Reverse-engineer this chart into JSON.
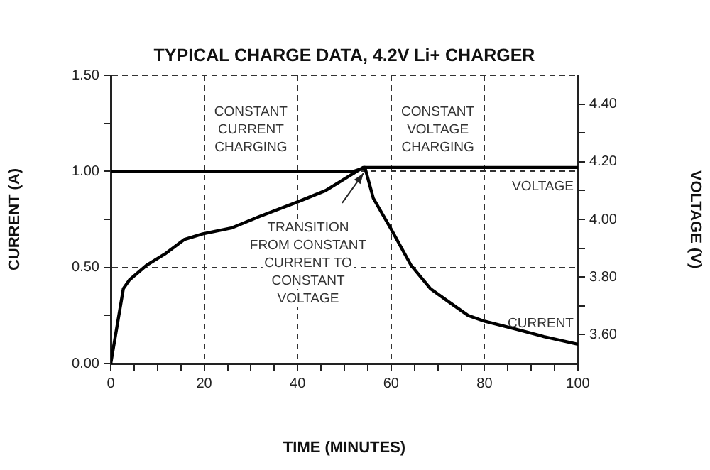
{
  "chart_data": {
    "type": "line",
    "title": "TYPICAL CHARGE DATA, 4.2V Li+ CHARGER",
    "xlabel": "TIME (MINUTES)",
    "ylabel": "CURRENT (A)",
    "y2label": "VOLTAGE (V)",
    "xlim": [
      0,
      100
    ],
    "xticks": [
      0,
      {
        "value": 5,
        "label": null
      },
      {
        "value": 10,
        "label": null
      },
      {
        "value": 15,
        "label": null
      },
      20,
      {
        "value": 25,
        "label": null
      },
      {
        "value": 30,
        "label": null
      },
      {
        "value": 35,
        "label": null
      },
      40,
      {
        "value": 45,
        "label": null
      },
      {
        "value": 50,
        "label": null
      },
      {
        "value": 55,
        "label": null
      },
      60,
      {
        "value": 65,
        "label": null
      },
      {
        "value": 70,
        "label": null
      },
      {
        "value": 75,
        "label": null
      },
      80,
      {
        "value": 85,
        "label": null
      },
      {
        "value": 90,
        "label": null
      },
      {
        "value": 95,
        "label": null
      },
      100
    ],
    "ylim": [
      0,
      1.5
    ],
    "yticks": [
      {
        "value": 0,
        "label": "0.00"
      },
      {
        "value": 0.25,
        "label": null
      },
      {
        "value": 0.5,
        "label": "0.50"
      },
      {
        "value": 0.75,
        "label": null
      },
      {
        "value": 1,
        "label": "1.00"
      },
      {
        "value": 1.25,
        "label": null
      },
      {
        "value": 1.5,
        "label": "1.50"
      }
    ],
    "y2lim": [
      3.5,
      4.5
    ],
    "y2ticks": [
      {
        "value": 3.6,
        "label": "3.60"
      },
      {
        "value": 3.7,
        "label": null
      },
      {
        "value": 3.8,
        "label": "3.80"
      },
      {
        "value": 3.9,
        "label": null
      },
      {
        "value": 4,
        "label": "4.00"
      },
      {
        "value": 4.1,
        "label": null
      },
      {
        "value": 4.2,
        "label": "4.20"
      },
      {
        "value": 4.3,
        "label": null
      },
      {
        "value": 4.4,
        "label": "4.40"
      }
    ],
    "series": [
      {
        "name": "VOLTAGE",
        "color": "#000000",
        "axis": "y2",
        "x": [
          0,
          2.7,
          4,
          7.6,
          11.6,
          15.7,
          19.7,
          25.8,
          31.8,
          39.9,
          46,
          50,
          54,
          60,
          80,
          100
        ],
        "values": [
          3.5,
          3.76,
          3.79,
          3.84,
          3.88,
          3.93,
          3.95,
          3.97,
          4.01,
          4.06,
          4.1,
          4.14,
          4.18,
          4.18,
          4.18,
          4.18
        ]
      },
      {
        "name": "CURRENT",
        "color": "#000000",
        "x": [
          0,
          52,
          54.4,
          56.2,
          60,
          64.3,
          68.4,
          72.4,
          76.5,
          80,
          86.6,
          92.7,
          100
        ],
        "values": [
          1,
          1,
          1.02,
          0.86,
          0.7,
          0.51,
          0.39,
          0.32,
          0.25,
          0.22,
          0.18,
          0.14,
          0.1
        ]
      }
    ],
    "annotations": [
      "CONSTANT\nCURRENT\nCHARGING",
      "CONSTANT\nVOLTAGE\nCHARGING",
      {
        "text": "TRANSITION\nFROM CONSTANT\nCURRENT TO\nCONSTANT\nVOLTAGE",
        "x": 54.4,
        "y": 1.02
      }
    ],
    "grid": true,
    "line_style": "solid",
    "marker": "none",
    "legend": false
  }
}
